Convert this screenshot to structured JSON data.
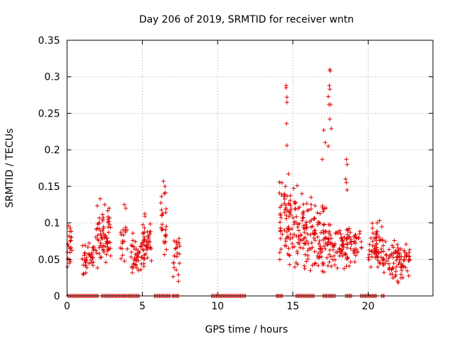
{
  "chart_data": {
    "type": "scatter",
    "title": "Day 206 of 2019, SRMTID for receiver wntn",
    "xlabel": "GPS time / hours",
    "ylabel": "SRMTID / TECUs",
    "xlim": [
      0,
      24.3
    ],
    "ylim": [
      0,
      0.35
    ],
    "x_ticks": [
      0,
      5,
      10,
      15,
      20
    ],
    "x_tick_labels": [
      "0",
      "5",
      "10",
      "15",
      "20"
    ],
    "y_ticks": [
      0,
      0.05,
      0.1,
      0.15,
      0.2,
      0.25,
      0.3,
      0.35
    ],
    "y_tick_labels": [
      "0",
      "0.05",
      "0.1",
      "0.15",
      "0.2",
      "0.25",
      "0.3",
      "0.35"
    ],
    "grid": true,
    "legend": "none",
    "marker": "+",
    "color": "#e00000",
    "clusters": [
      {
        "x_range": [
          0.0,
          0.35
        ],
        "y_range": [
          0.025,
          0.1
        ],
        "count": 18
      },
      {
        "x_range": [
          1.0,
          1.8
        ],
        "y_range": [
          0.025,
          0.08
        ],
        "count": 40
      },
      {
        "x_range": [
          1.9,
          2.9
        ],
        "y_range": [
          0.03,
          0.13
        ],
        "count": 70
      },
      {
        "x_range": [
          3.5,
          4.0
        ],
        "y_range": [
          0.04,
          0.125
        ],
        "count": 18
      },
      {
        "x_range": [
          4.2,
          5.0
        ],
        "y_range": [
          0.03,
          0.09
        ],
        "count": 40
      },
      {
        "x_range": [
          5.0,
          5.6
        ],
        "y_range": [
          0.035,
          0.115
        ],
        "count": 45
      },
      {
        "x_range": [
          6.2,
          6.6
        ],
        "y_range": [
          0.035,
          0.155
        ],
        "count": 22
      },
      {
        "x_range": [
          7.0,
          7.5
        ],
        "y_range": [
          0.02,
          0.09
        ],
        "count": 22
      },
      {
        "x_range": [
          14.1,
          15.3
        ],
        "y_range": [
          0.035,
          0.165
        ],
        "count": 85
      },
      {
        "x_range": [
          15.3,
          16.5
        ],
        "y_range": [
          0.03,
          0.14
        ],
        "count": 80
      },
      {
        "x_range": [
          16.5,
          17.6
        ],
        "y_range": [
          0.03,
          0.13
        ],
        "count": 70
      },
      {
        "x_range": [
          17.6,
          18.9
        ],
        "y_range": [
          0.03,
          0.11
        ],
        "count": 70
      },
      {
        "x_range": [
          18.9,
          19.6
        ],
        "y_range": [
          0.04,
          0.09
        ],
        "count": 25
      },
      {
        "x_range": [
          20.0,
          21.0
        ],
        "y_range": [
          0.03,
          0.105
        ],
        "count": 60
      },
      {
        "x_range": [
          21.0,
          22.2
        ],
        "y_range": [
          0.02,
          0.08
        ],
        "count": 60
      },
      {
        "x_range": [
          22.2,
          22.8
        ],
        "y_range": [
          0.02,
          0.075
        ],
        "count": 25
      }
    ],
    "highlight_points": [
      [
        0.1,
        0.096
      ],
      [
        0.25,
        0.08
      ],
      [
        0.2,
        0.075
      ],
      [
        2.2,
        0.133
      ],
      [
        2.5,
        0.125
      ],
      [
        2.8,
        0.12
      ],
      [
        3.8,
        0.125
      ],
      [
        3.9,
        0.12
      ],
      [
        6.4,
        0.157
      ],
      [
        6.5,
        0.15
      ],
      [
        6.45,
        0.14
      ],
      [
        6.35,
        0.113
      ],
      [
        7.4,
        0.02
      ],
      [
        14.55,
        0.288
      ],
      [
        14.55,
        0.285
      ],
      [
        14.6,
        0.272
      ],
      [
        14.6,
        0.265
      ],
      [
        14.58,
        0.236
      ],
      [
        14.6,
        0.206
      ],
      [
        14.7,
        0.167
      ],
      [
        14.5,
        0.15
      ],
      [
        17.45,
        0.31
      ],
      [
        17.48,
        0.308
      ],
      [
        17.42,
        0.288
      ],
      [
        17.45,
        0.283
      ],
      [
        17.35,
        0.273
      ],
      [
        17.4,
        0.262
      ],
      [
        17.5,
        0.262
      ],
      [
        17.45,
        0.242
      ],
      [
        17.55,
        0.229
      ],
      [
        17.05,
        0.227
      ],
      [
        17.35,
        0.205
      ],
      [
        17.15,
        0.21
      ],
      [
        16.95,
        0.187
      ],
      [
        18.55,
        0.187
      ],
      [
        18.6,
        0.18
      ],
      [
        18.5,
        0.16
      ],
      [
        18.55,
        0.155
      ],
      [
        18.6,
        0.145
      ],
      [
        15.6,
        0.14
      ],
      [
        16.2,
        0.135
      ],
      [
        20.75,
        0.103
      ],
      [
        20.6,
        0.1
      ],
      [
        22.3,
        0.025
      ],
      [
        22.0,
        0.018
      ]
    ],
    "zero_value_bands": [
      {
        "x_range": [
          0.05,
          2.1
        ],
        "y": 0
      },
      {
        "x_range": [
          2.3,
          4.8
        ],
        "y": 0
      },
      {
        "x_range": [
          5.8,
          6.9
        ],
        "y": 0
      },
      {
        "x_range": [
          7.0,
          7.4
        ],
        "y": 0
      },
      {
        "x_range": [
          9.6,
          11.9
        ],
        "y": 0
      },
      {
        "x_range": [
          13.9,
          14.3
        ],
        "y": 0
      },
      {
        "x_range": [
          15.2,
          16.4
        ],
        "y": 0
      },
      {
        "x_range": [
          17.0,
          17.8
        ],
        "y": 0
      },
      {
        "x_range": [
          18.5,
          18.9
        ],
        "y": 0
      },
      {
        "x_range": [
          19.5,
          20.6
        ],
        "y": 0
      },
      {
        "x_range": [
          20.9,
          21.1
        ],
        "y": 0
      }
    ]
  }
}
